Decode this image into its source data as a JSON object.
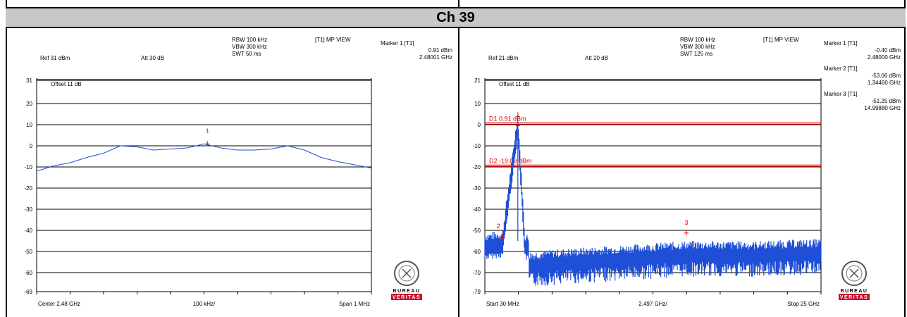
{
  "page_title": "Ch 39",
  "panels": [
    {
      "ref": "Ref 31 dBm",
      "att": "Att 30 dB",
      "rbw": "RBW 100 kHz",
      "vbw": "VBW 300 kHz",
      "swt": "SWT 50 ms",
      "view": "[T1] MP VIEW",
      "offset": "Offset 11 dB",
      "markers": [
        {
          "label": "Marker 1 [T1]",
          "value": "0.91 dBm",
          "freq": "2.48001 GHz"
        }
      ],
      "footer_left": "Center 2.48 GHz",
      "footer_mid": "100 kHz/",
      "footer_right": "Span 1 MHz",
      "logo_text": [
        "BUREAU",
        "VERITAS"
      ]
    },
    {
      "ref": "Ref 21 dBm",
      "att": "Att 20 dB",
      "rbw": "RBW 100 kHz",
      "vbw": "VBW 300 kHz",
      "swt": "SWT 125 ms",
      "view": "[T1] MP VIEW",
      "offset": "Offset 11 dB",
      "markers": [
        {
          "label": "Marker 1 [T1]",
          "value": "-0.40 dBm",
          "freq": "2.48000 GHz"
        },
        {
          "label": "Marker 2 [T1]",
          "value": "-53.06 dBm",
          "freq": "1.34460 GHz"
        },
        {
          "label": "Marker 3 [T1]",
          "value": "-51.25 dBm",
          "freq": "14.99880 GHz"
        }
      ],
      "footer_left": "Start 30 MHz",
      "footer_mid": "2.497 GHz/",
      "footer_right": "Stop 25 GHz",
      "logo_text": [
        "BUREAU",
        "VERITAS"
      ]
    }
  ],
  "chart_data": [
    {
      "type": "line",
      "title": "",
      "xlabel": "",
      "ylabel": "",
      "xlim": [
        2.4795,
        2.4805
      ],
      "ylim": [
        -69,
        31
      ],
      "y_ticks": [
        "31",
        "20",
        "10",
        "0",
        "-10",
        "-20",
        "-30",
        "-40",
        "-50",
        "-60",
        "-69"
      ],
      "grid": true,
      "series": [
        {
          "x": [
            2.4795,
            2.47955,
            2.4796,
            2.47965,
            2.4797,
            2.47975,
            2.4798,
            2.47985,
            2.4799,
            2.47995,
            2.48,
            2.48005,
            2.4801,
            2.48015,
            2.4802,
            2.48025,
            2.4803,
            2.48035,
            2.4804,
            2.48045,
            2.4805
          ],
          "values": [
            -12,
            -9.5,
            -8,
            -5.5,
            -3.5,
            0,
            -0.5,
            -2,
            -1.5,
            -1,
            0.9,
            -1,
            -2,
            -2,
            -1.5,
            0,
            -2,
            -5.5,
            -7.5,
            -9,
            -10.5
          ]
        }
      ],
      "markers": [
        {
          "name": "1",
          "x": 2.48001,
          "y": 0.91
        }
      ]
    },
    {
      "type": "line",
      "title": "",
      "xlabel": "",
      "ylabel": "",
      "xlim": [
        0.03,
        25
      ],
      "ylim": [
        -79,
        21
      ],
      "y_ticks": [
        "21",
        "10",
        "0",
        "-10",
        "-20",
        "-30",
        "-40",
        "-50",
        "-60",
        "-70",
        "-79"
      ],
      "grid": true,
      "reference_lines": [
        {
          "label": "D1 0.91 dBm",
          "value": 0.91
        },
        {
          "label": "D2 -19.09 dBm",
          "value": -19.09
        }
      ],
      "series": [
        {
          "x": [
            0.03,
            1.34,
            2.48,
            3.0,
            3.3,
            3.31,
            5,
            10,
            14.9988,
            20,
            25
          ],
          "values": [
            -58,
            -57,
            -0.4,
            -58,
            -59,
            -67,
            -66,
            -64,
            -62,
            -62,
            -61
          ]
        }
      ],
      "markers": [
        {
          "name": "1",
          "x": 2.48,
          "y": -0.4
        },
        {
          "name": "2",
          "x": 1.3446,
          "y": -53.06
        },
        {
          "name": "3",
          "x": 14.9988,
          "y": -51.25
        }
      ]
    }
  ]
}
